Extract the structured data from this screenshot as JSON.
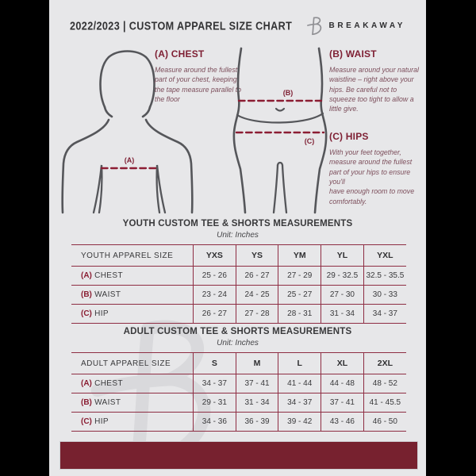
{
  "colors": {
    "accent_maroon": "#8a1e33",
    "footer_maroon": "#77212f",
    "page_background": "#e7e7e9",
    "figure_stroke": "#55565a",
    "side_bars": "#000000"
  },
  "header": {
    "title": "2022/2023  |  CUSTOM APPAREL SIZE CHART",
    "brand": "BREAKAWAY",
    "logo_icon": "breakaway-b-logo"
  },
  "diagram": {
    "chest_marker": "(A)",
    "waist_marker": "(B)",
    "hips_marker": "(C)"
  },
  "sections": {
    "chest": {
      "label": "(A) CHEST",
      "description": "Measure around the fullest part of your chest, keeping the tape measure parallel to the floor"
    },
    "waist": {
      "label": "(B) WAIST",
      "description": "Measure around your natural waistline – right above your hips. Be careful not to squeeze too tight to allow a little give."
    },
    "hips": {
      "label": "(C) HIPS",
      "description": "With your feet together, measure around the fullest part of your hips to ensure you'll\nhave enough room to move comfortably."
    }
  },
  "youth_table": {
    "title": "YOUTH CUSTOM TEE & SHORTS MEASUREMENTS",
    "unit": "Unit: Inches",
    "size_label": "YOUTH APPAREL SIZE",
    "sizes": [
      "YXS",
      "YS",
      "YM",
      "YL",
      "YXL"
    ],
    "rows": [
      {
        "prefix": "(A)",
        "label": "CHEST",
        "values": [
          "25 - 26",
          "26 - 27",
          "27 - 29",
          "29 - 32.5",
          "32.5 - 35.5"
        ]
      },
      {
        "prefix": "(B)",
        "label": "WAIST",
        "values": [
          "23 - 24",
          "24 - 25",
          "25 - 27",
          "27 - 30",
          "30 - 33"
        ]
      },
      {
        "prefix": "(C)",
        "label": "HIP",
        "values": [
          "26 - 27",
          "27 - 28",
          "28 - 31",
          "31 - 34",
          "34 - 37"
        ]
      }
    ]
  },
  "adult_table": {
    "title": "ADULT CUSTOM TEE & SHORTS MEASUREMENTS",
    "unit": "Unit: Inches",
    "size_label": "ADULT APPAREL SIZE",
    "sizes": [
      "S",
      "M",
      "L",
      "XL",
      "2XL"
    ],
    "rows": [
      {
        "prefix": "(A)",
        "label": "CHEST",
        "values": [
          "34 - 37",
          "37 - 41",
          "41 - 44",
          "44 - 48",
          "48 - 52"
        ]
      },
      {
        "prefix": "(B)",
        "label": "WAIST",
        "values": [
          "29 - 31",
          "31 - 34",
          "34 - 37",
          "37 - 41",
          "41 - 45.5"
        ]
      },
      {
        "prefix": "(C)",
        "label": "HIP",
        "values": [
          "34 - 36",
          "36 - 39",
          "39 - 42",
          "43 - 46",
          "46 - 50"
        ]
      }
    ]
  }
}
